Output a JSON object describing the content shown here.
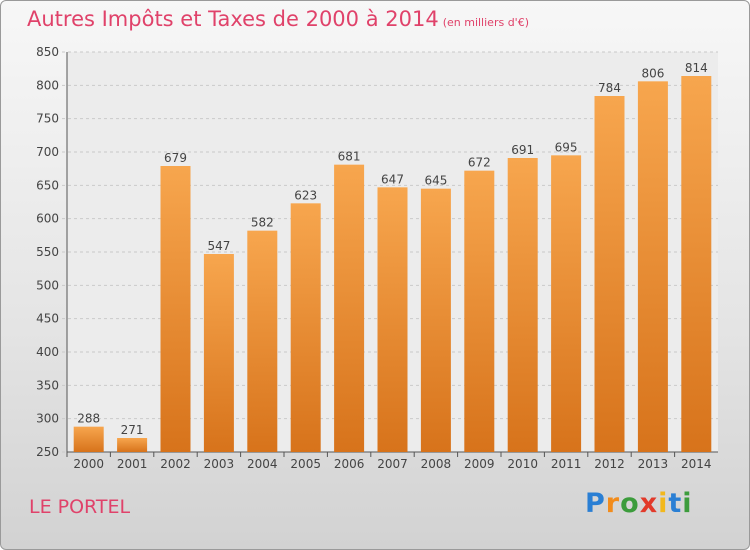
{
  "title": "Autres Impôts et Taxes de 2000 à 2014",
  "subtitle": "(en milliers d'€)",
  "town": "LE PORTEL",
  "logo": "Proxiti",
  "colors": {
    "bar_light": "#f7a64e",
    "bar_dark": "#d7731b",
    "title": "#e0426a",
    "grid": "#c9c9c9"
  },
  "chart_data": {
    "type": "bar",
    "categories": [
      "2000",
      "2001",
      "2002",
      "2003",
      "2004",
      "2005",
      "2006",
      "2007",
      "2008",
      "2009",
      "2010",
      "2011",
      "2012",
      "2013",
      "2014"
    ],
    "values": [
      288,
      271,
      679,
      547,
      582,
      623,
      681,
      647,
      645,
      672,
      691,
      695,
      784,
      806,
      814
    ],
    "ylim": [
      250,
      850
    ],
    "yticks": [
      250,
      300,
      350,
      400,
      450,
      500,
      550,
      600,
      650,
      700,
      750,
      800,
      850
    ],
    "grid": true
  }
}
